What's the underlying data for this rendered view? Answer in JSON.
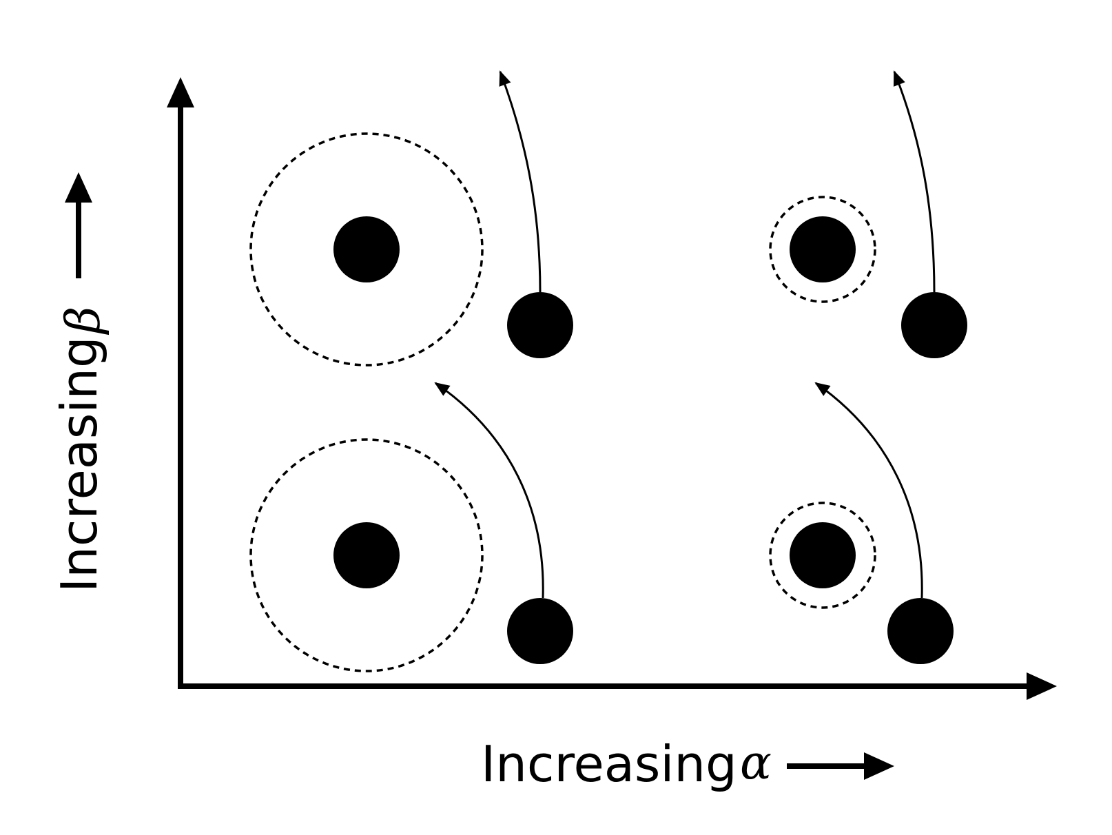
{
  "labels": {
    "x_axis_text": "Increasing",
    "x_axis_symbol": "α",
    "y_axis_text": "Increasing",
    "y_axis_symbol": "β"
  },
  "icons": [
    "arrow-up-icon",
    "arrow-right-icon"
  ],
  "colors": {
    "ink": "#000000",
    "background": "#ffffff"
  }
}
